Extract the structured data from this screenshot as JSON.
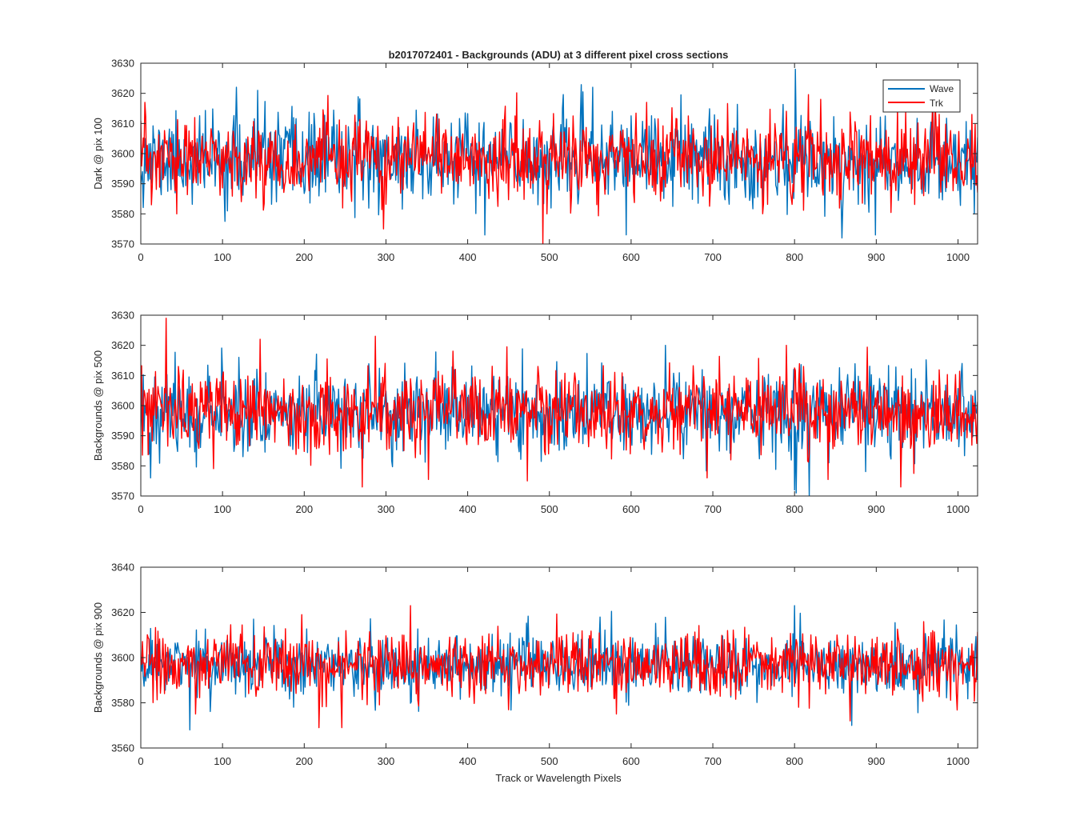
{
  "chart_data": {
    "type": "line",
    "title": "b2017072401 - Backgrounds (ADU) at 3 different pixel cross sections",
    "xlabel": "Track or Wavelength Pixels",
    "legend": {
      "position": "top-right",
      "entries": [
        "Wave",
        "Trk"
      ]
    },
    "series_colors": {
      "Wave": "#0072BD",
      "Trk": "#FF0000"
    },
    "x_range": [
      0,
      1024
    ],
    "x_ticks": [
      0,
      100,
      200,
      300,
      400,
      500,
      600,
      700,
      800,
      900,
      1000
    ],
    "panels": [
      {
        "ylabel": "Dark @ pix 100",
        "ylim": [
          3570,
          3630
        ],
        "y_ticks": [
          3570,
          3580,
          3590,
          3600,
          3610,
          3620,
          3630
        ],
        "series": [
          {
            "name": "Wave",
            "baseline": 3598,
            "noise_sd": 7.2,
            "seed": 11,
            "highlights": [
              [
                5,
                3605
              ],
              [
                117,
                3622
              ],
              [
                143,
                3621
              ],
              [
                300,
                3600
              ],
              [
                421,
                3573
              ],
              [
                553,
                3622
              ],
              [
                801,
                3628
              ],
              [
                858,
                3572
              ],
              [
                899,
                3573
              ],
              [
                1020,
                3580
              ]
            ]
          },
          {
            "name": "Trk",
            "baseline": 3598,
            "noise_sd": 6.5,
            "seed": 23,
            "highlights": [
              [
                5,
                3617
              ],
              [
                13,
                3583
              ],
              [
                44,
                3580
              ],
              [
                297,
                3575
              ],
              [
                492,
                3570
              ],
              [
                497,
                3580
              ],
              [
                619,
                3617
              ],
              [
                832,
                3618
              ],
              [
                972,
                3617
              ],
              [
                1017,
                3613
              ]
            ]
          }
        ]
      },
      {
        "ylabel": "Backgrounds @ pix 500",
        "ylim": [
          3570,
          3630
        ],
        "y_ticks": [
          3570,
          3580,
          3590,
          3600,
          3610,
          3620,
          3630
        ],
        "series": [
          {
            "name": "Wave",
            "baseline": 3598,
            "noise_sd": 6.8,
            "seed": 37,
            "highlights": [
              [
                12,
                3576
              ],
              [
                120,
                3616
              ],
              [
                642,
                3620
              ],
              [
                800,
                3572
              ],
              [
                802,
                3571
              ],
              [
                818,
                3570
              ],
              [
                1005,
                3614
              ]
            ]
          },
          {
            "name": "Trk",
            "baseline": 3598,
            "noise_sd": 6.6,
            "seed": 53,
            "highlights": [
              [
                31,
                3629
              ],
              [
                146,
                3622
              ],
              [
                271,
                3573
              ],
              [
                287,
                3623
              ],
              [
                473,
                3575
              ],
              [
                693,
                3576
              ],
              [
                790,
                3620
              ],
              [
                930,
                3573
              ]
            ]
          }
        ]
      },
      {
        "ylabel": "Backgrounds @ pix 900",
        "ylim": [
          3560,
          3640
        ],
        "y_ticks": [
          3560,
          3580,
          3600,
          3620,
          3640
        ],
        "series": [
          {
            "name": "Wave",
            "baseline": 3597,
            "noise_sd": 6.9,
            "seed": 71,
            "highlights": [
              [
                60,
                3568
              ],
              [
                138,
                3617
              ],
              [
                800,
                3623
              ],
              [
                870,
                3570
              ]
            ]
          },
          {
            "name": "Trk",
            "baseline": 3597,
            "noise_sd": 7.0,
            "seed": 89,
            "highlights": [
              [
                197,
                3619
              ],
              [
                218,
                3569
              ],
              [
                246,
                3569
              ],
              [
                330,
                3623
              ],
              [
                868,
                3572
              ]
            ]
          }
        ]
      }
    ]
  }
}
